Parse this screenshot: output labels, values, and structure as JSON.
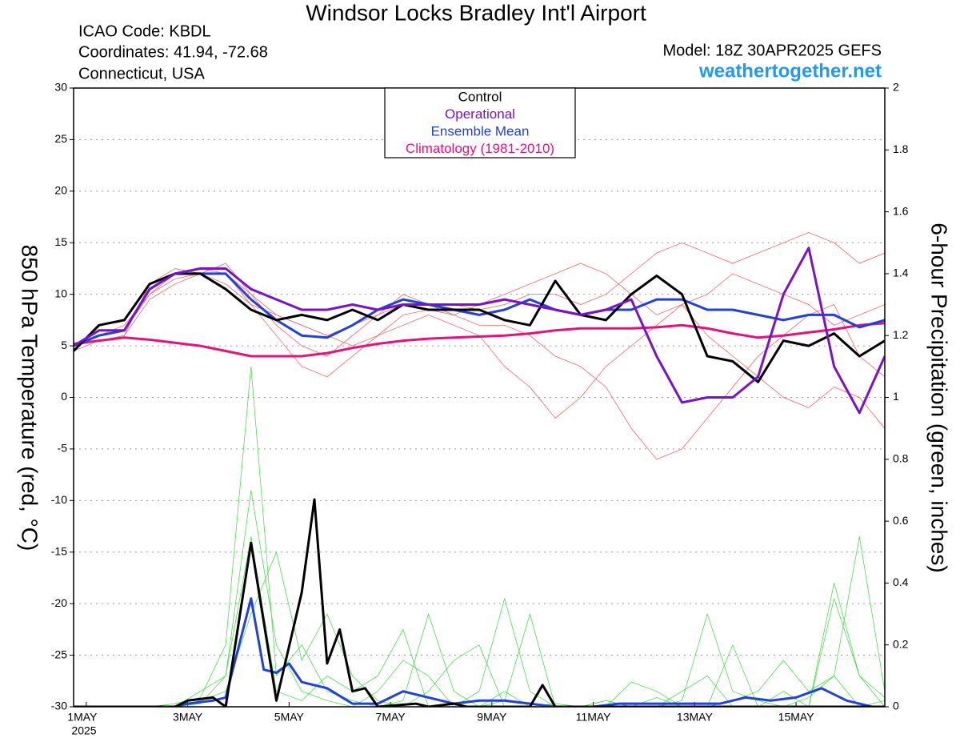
{
  "chart_data": {
    "type": "line",
    "title": "Windsor Locks Bradley Int'l Airport",
    "info": [
      "ICAO Code: KBDL",
      "Coordinates: 41.94, -72.68",
      "Connecticut, USA"
    ],
    "model": "Model: 18Z 30APR2025 GEFS",
    "site": "weathertogether.net",
    "y_label": "850 hPa Temperature (red, °C)",
    "y2_label": "6-hour Precipitation (green, inches)",
    "x_year": "2025",
    "xlim": [
      0.75,
      16.75
    ],
    "xticks": [
      {
        "value": 1,
        "label": "1MAY"
      },
      {
        "value": 3,
        "label": "3MAY"
      },
      {
        "value": 5,
        "label": "5MAY"
      },
      {
        "value": 7,
        "label": "7MAY"
      },
      {
        "value": 9,
        "label": "9MAY"
      },
      {
        "value": 11,
        "label": "11MAY"
      },
      {
        "value": 13,
        "label": "13MAY"
      },
      {
        "value": 15,
        "label": "15MAY"
      }
    ],
    "ylim": [
      -30,
      30
    ],
    "yticks": [
      -30,
      -25,
      -20,
      -15,
      -10,
      -5,
      0,
      5,
      10,
      15,
      20,
      25,
      30
    ],
    "y2lim": [
      0,
      2
    ],
    "y2ticks": [
      0,
      0.2,
      0.4,
      0.6,
      0.8,
      1,
      1.2,
      1.4,
      1.6,
      1.8,
      2
    ],
    "grid": true,
    "x": [
      0.75,
      1.25,
      1.75,
      2.25,
      2.75,
      3.25,
      3.75,
      4.25,
      4.75,
      5.25,
      5.75,
      6.25,
      6.75,
      7.25,
      7.75,
      8.25,
      8.75,
      9.25,
      9.75,
      10.25,
      10.75,
      11.25,
      11.75,
      12.25,
      12.75,
      13.25,
      13.75,
      14.25,
      14.75,
      15.25,
      15.75,
      16.25,
      16.75
    ],
    "series": [
      {
        "color": "#ff5050",
        "values": [
          5,
          6,
          7,
          10,
          12,
          12.5,
          12,
          10,
          8,
          7,
          6,
          7,
          8,
          9,
          9,
          9,
          8.5,
          9,
          10,
          10,
          9,
          10,
          12,
          14,
          15,
          14,
          13,
          14,
          15,
          16,
          15,
          13,
          14
        ]
      },
      {
        "color": "#ff5050",
        "values": [
          4.5,
          5.5,
          6,
          11,
          12.5,
          12,
          12,
          9,
          6,
          3,
          2,
          4,
          6,
          8,
          8.5,
          8,
          7,
          7,
          6,
          4,
          3,
          1,
          -3,
          -6,
          -5,
          -2,
          1,
          4,
          6,
          8,
          9,
          4,
          2
        ]
      },
      {
        "color": "#ff5050",
        "values": [
          5,
          6,
          6.5,
          10,
          11.5,
          12,
          13,
          10,
          7,
          5,
          4,
          6,
          8,
          10,
          9,
          8,
          9,
          10,
          11,
          12,
          13,
          12,
          10,
          8,
          9,
          10,
          12,
          11,
          10,
          9,
          7,
          8,
          9
        ]
      },
      {
        "color": "#ff5050",
        "values": [
          5,
          5.5,
          6,
          9.5,
          11,
          12,
          11,
          9,
          8,
          7,
          6,
          5,
          6,
          7,
          8,
          7,
          6,
          3,
          1,
          -2,
          0,
          3,
          5,
          7,
          9,
          6,
          4,
          2,
          0,
          -1,
          1,
          0,
          -3
        ]
      },
      {
        "color": "#33dd33",
        "axis": "y2",
        "values": [
          0,
          0,
          0,
          0,
          0,
          0.05,
          0.1,
          0.7,
          0.2,
          0.05,
          0.02,
          0,
          0.05,
          0.15,
          0.1,
          0,
          0,
          0.05,
          0,
          0,
          0,
          0.02,
          0,
          0,
          0.05,
          0.1,
          0,
          0,
          0,
          0.03,
          0.1,
          0,
          0.02
        ]
      },
      {
        "color": "#33dd33",
        "axis": "y2",
        "values": [
          0,
          0,
          0,
          0,
          0.01,
          0.03,
          0.2,
          1.1,
          0.1,
          0.2,
          0.05,
          0.02,
          0,
          0.02,
          0.3,
          0.05,
          0,
          0.02,
          0.3,
          0,
          0,
          0,
          0,
          0.03,
          0,
          0,
          0.2,
          0,
          0.05,
          0,
          0.4,
          0.1,
          0
        ]
      },
      {
        "color": "#33dd33",
        "axis": "y2",
        "values": [
          0,
          0,
          0,
          0,
          0,
          0.02,
          0.05,
          0.3,
          0.5,
          0.15,
          0.3,
          0.1,
          0.02,
          0,
          0.05,
          0.15,
          0.2,
          0,
          0,
          0.01,
          0,
          0,
          0.08,
          0.05,
          0,
          0,
          0.02,
          0.05,
          0.15,
          0.05,
          0.1,
          0.55,
          0.05
        ]
      },
      {
        "color": "#33dd33",
        "axis": "y2",
        "values": [
          0,
          0,
          0,
          0,
          0,
          0.01,
          0.1,
          0.55,
          0.05,
          0.02,
          0.1,
          0.05,
          0.1,
          0.25,
          0,
          0,
          0.05,
          0.35,
          0.05,
          0,
          0,
          0.02,
          0,
          0,
          0.02,
          0.3,
          0.05,
          0.02,
          0,
          0,
          0.35,
          0.1,
          0.03
        ]
      },
      {
        "color": "#2040e0",
        "axis": "y2",
        "x": [
          0.75,
          2.75,
          3,
          3.5,
          3.75,
          4.25,
          4.5,
          4.75,
          5,
          5.25,
          5.75,
          6.25,
          6.75,
          7.25,
          7.75,
          8.25,
          8.75,
          9.25,
          9.75,
          10.25,
          11,
          11.5,
          12.5,
          13.5,
          14,
          14.5,
          15,
          15.5,
          16,
          16.5,
          16.75
        ],
        "values": [
          0,
          0,
          0.01,
          0.02,
          0.03,
          0.35,
          0.12,
          0.11,
          0.14,
          0.08,
          0.06,
          0.01,
          0.01,
          0.05,
          0.03,
          0.01,
          0.02,
          0.02,
          0.01,
          0,
          0,
          0.01,
          0.01,
          0.01,
          0.03,
          0.02,
          0.03,
          0.06,
          0.02,
          0,
          0
        ]
      },
      {
        "color": "#000000",
        "axis": "y2",
        "x": [
          0.75,
          2.75,
          3,
          3.5,
          3.75,
          4.25,
          4.75,
          5.25,
          5.5,
          5.75,
          6,
          6.25,
          6.5,
          6.75,
          7.5,
          7.75,
          8.25,
          8.5,
          9.75,
          10,
          10.25,
          16.75
        ],
        "values": [
          0,
          0,
          0.02,
          0.03,
          0,
          0.53,
          0.02,
          0.37,
          0.67,
          0.14,
          0.25,
          0.05,
          0.06,
          0,
          0.01,
          0,
          0.01,
          0,
          0,
          0.07,
          0,
          0
        ]
      },
      {
        "name": "Climatology (1981-2010)",
        "color": "#e8107a",
        "values": [
          5.2,
          5.5,
          5.8,
          5.6,
          5.3,
          5,
          4.5,
          4,
          4,
          4,
          4.3,
          4.8,
          5.2,
          5.5,
          5.7,
          5.8,
          5.9,
          6,
          6.2,
          6.5,
          6.7,
          6.7,
          6.7,
          6.8,
          7,
          6.7,
          6.2,
          5.8,
          6,
          6.3,
          6.6,
          7,
          7.2
        ]
      },
      {
        "name": "Ensemble Mean",
        "color": "#2040e0",
        "values": [
          5,
          6,
          6.5,
          10.5,
          12,
          12,
          12,
          9.5,
          7.5,
          6,
          5.8,
          7,
          8.5,
          9.5,
          9,
          8.5,
          8,
          8.5,
          9.5,
          8.5,
          8,
          8.5,
          8.5,
          9.5,
          9.5,
          8.5,
          8.5,
          8,
          7.5,
          8,
          8,
          6.8,
          7.5
        ]
      },
      {
        "name": "Control",
        "color": "#000000",
        "values": [
          4.5,
          7,
          7.5,
          11,
          12,
          12,
          10.5,
          8.5,
          7.5,
          8,
          7.5,
          8.5,
          7.5,
          9,
          8.5,
          8.5,
          8.5,
          7.5,
          7,
          11.3,
          8,
          7.5,
          10,
          11.8,
          10,
          4,
          3.5,
          1.5,
          5.5,
          5,
          6.2,
          4,
          5.5
        ]
      },
      {
        "name": "Operational",
        "color": "#7a10d0",
        "values": [
          5,
          6.5,
          6.5,
          10.5,
          12,
          12.5,
          12.5,
          10.5,
          9.5,
          8.5,
          8.5,
          9,
          8.5,
          9,
          9,
          9,
          9,
          9.5,
          9,
          8.5,
          8,
          8.5,
          9.5,
          4,
          -0.5,
          0,
          0,
          2,
          10,
          14.5,
          3,
          -1.5,
          4
        ]
      }
    ]
  }
}
